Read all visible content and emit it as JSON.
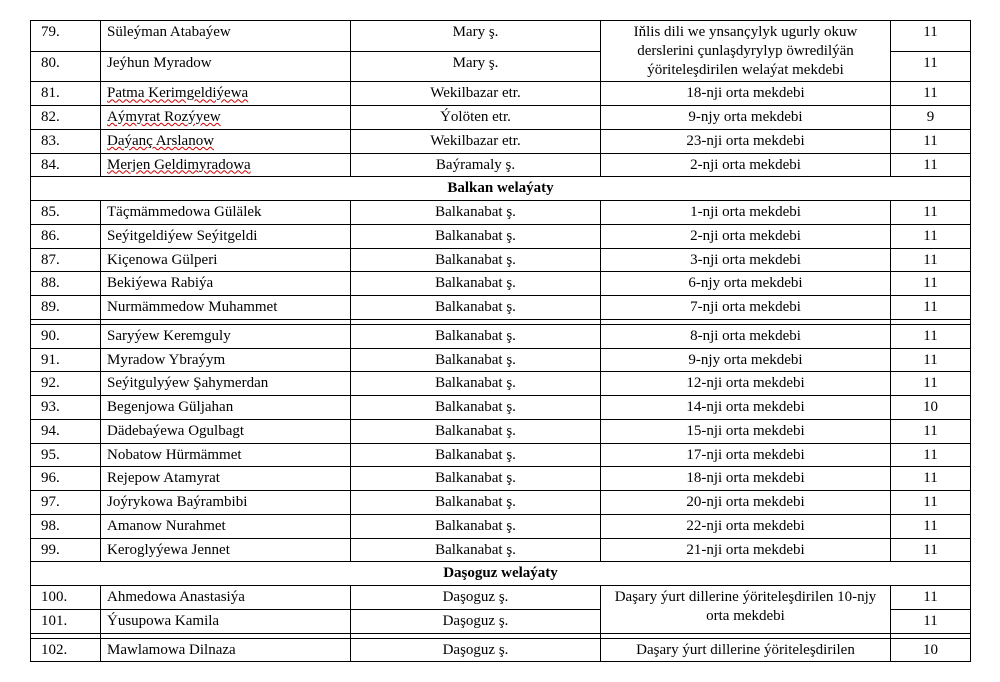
{
  "mary_desc": "Iňlis dili we ynsançylyk ugurly okuw derslerini çunlaşdyrylyp öwredilýän ýöriteleşdirilen welaýat mekdebi",
  "mary_rows": [
    {
      "n": "79.",
      "name": "Süleýman Atabaýew",
      "loc": "Mary ş.",
      "gr": "11"
    },
    {
      "n": "80.",
      "name": "Jeýhun Myradow",
      "loc": "Mary ş.",
      "gr": "11"
    }
  ],
  "mary_rows2": [
    {
      "n": "81.",
      "name": "Patma Kerimgeldiýewa",
      "wave": true,
      "loc": "Wekilbazar etr.",
      "sch": "18-nji orta mekdebi",
      "gr": "11"
    },
    {
      "n": "82.",
      "name": "Aýmyrat Rozýyew",
      "wave": true,
      "loc": "Ýolöten etr.",
      "sch": "9-njy orta mekdebi",
      "gr": "9"
    },
    {
      "n": "83.",
      "name": "Daýanç Arslanow",
      "wave": true,
      "loc": "Wekilbazar etr.",
      "sch": "23-nji orta mekdebi",
      "gr": "11"
    },
    {
      "n": "84.",
      "name": "Merjen Geldimyradowa",
      "wave": true,
      "loc": "Baýramaly ş.",
      "sch": "2-nji orta mekdebi",
      "gr": "11"
    }
  ],
  "sect_balkan": "Balkan welaýaty",
  "balkan_rows1": [
    {
      "n": "85.",
      "name": "Täçmämmedowa Gülälek",
      "loc": "Balkanabat ş.",
      "sch": "1-nji orta mekdebi",
      "gr": "11"
    },
    {
      "n": "86.",
      "name": "Seýitgeldiýew Seýitgeldi",
      "loc": "Balkanabat ş.",
      "sch": "2-nji orta mekdebi",
      "gr": "11"
    },
    {
      "n": "87.",
      "name": "Kiçenowa Gülperi",
      "loc": "Balkanabat ş.",
      "sch": "3-nji orta mekdebi",
      "gr": "11"
    },
    {
      "n": "88.",
      "name": "Bekiýewa Rabiýa",
      "loc": "Balkanabat ş.",
      "sch": "6-njy orta mekdebi",
      "gr": "11"
    },
    {
      "n": "89.",
      "name": "Nurmämmedow Muhammet",
      "loc": "Balkanabat ş.",
      "sch": "7-nji orta mekdebi",
      "gr": "11"
    }
  ],
  "gap_row": {
    "n": "",
    "name": "",
    "loc": "",
    "sch": "",
    "gr": ""
  },
  "balkan_rows2": [
    {
      "n": "90.",
      "name": "Saryýew Keremguly",
      "loc": "Balkanabat ş.",
      "sch": "8-nji orta mekdebi",
      "gr": "11"
    },
    {
      "n": "91.",
      "name": "Myradow Ybraýym",
      "loc": "Balkanabat ş.",
      "sch": "9-njy orta mekdebi",
      "gr": "11"
    },
    {
      "n": "92.",
      "name": "Seýitgulyýew Şahymerdan",
      "loc": "Balkanabat ş.",
      "sch": "12-nji orta mekdebi",
      "gr": "11"
    },
    {
      "n": "93.",
      "name": "Begenjowa Güljahan",
      "loc": "Balkanabat ş.",
      "sch": "14-nji orta mekdebi",
      "gr": "10"
    },
    {
      "n": "94.",
      "name": "Dädebaýewa Ogulbagt",
      "loc": "Balkanabat ş.",
      "sch": "15-nji orta mekdebi",
      "gr": "11"
    },
    {
      "n": "95.",
      "name": "Nobatow Hürmämmet",
      "loc": "Balkanabat ş.",
      "sch": "17-nji orta mekdebi",
      "gr": "11"
    },
    {
      "n": "96.",
      "name": "Rejepow Atamyrat",
      "loc": "Balkanabat ş.",
      "sch": "18-nji orta mekdebi",
      "gr": "11"
    },
    {
      "n": "97.",
      "name": "Joýrykowa Baýrambibi",
      "loc": "Balkanabat ş.",
      "sch": "20-nji orta mekdebi",
      "gr": "11"
    },
    {
      "n": "98.",
      "name": "Amanow Nurahmet",
      "loc": "Balkanabat ş.",
      "sch": "22-nji orta mekdebi",
      "gr": "11"
    },
    {
      "n": "99.",
      "name": "Keroglyýewa Jennet",
      "loc": "Balkanabat ş.",
      "sch": "21-nji orta mekdebi",
      "gr": "11"
    }
  ],
  "sect_dashoguz": "Daşoguz welaýaty",
  "dash_desc": "Daşary ýurt dillerine ýöriteleşdirilen 10-njy orta mekdebi",
  "dash_rows1": [
    {
      "n": "100.",
      "name": "Ahmedowa Anastasiýa",
      "loc": "Daşoguz ş.",
      "gr": "11"
    },
    {
      "n": "101.",
      "name": "Ýusupowa Kamila",
      "loc": "Daşoguz ş.",
      "gr": "11"
    }
  ],
  "dash_rows2": [
    {
      "n": "102.",
      "name": "Mawlamowa Dilnaza",
      "loc": "Daşoguz ş.",
      "sch": "Daşary ýurt dillerine ýöriteleşdirilen",
      "gr": "10"
    }
  ]
}
